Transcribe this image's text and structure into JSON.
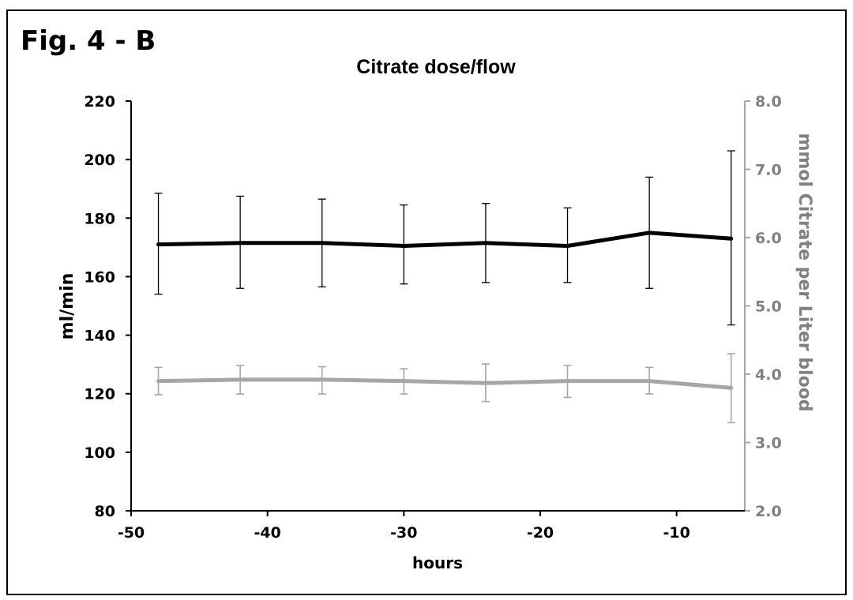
{
  "figure_label": "Fig. 4 - B",
  "chart_data": {
    "type": "line",
    "title": "Citrate dose/flow",
    "xlabel": "hours",
    "ylabel": "ml/min",
    "y2label": "mmol Citrate per Liter blood",
    "xlim": [
      -50,
      -5
    ],
    "ylim": [
      80,
      220
    ],
    "y2lim": [
      2.0,
      8.0
    ],
    "x_ticks": [
      "-50",
      "-40",
      "-30",
      "-20",
      "-10"
    ],
    "y_ticks": [
      "80",
      "100",
      "120",
      "140",
      "160",
      "180",
      "200",
      "220"
    ],
    "y2_ticks": [
      "2.0",
      "3.0",
      "4.0",
      "5.0",
      "6.0",
      "7.0",
      "8.0"
    ],
    "grid": false,
    "legend": "none",
    "x": [
      -48,
      -42,
      -36,
      -30,
      -24,
      -18,
      -12,
      -6
    ],
    "series": [
      {
        "axis": "left",
        "color": "#000000",
        "values": [
          171,
          171.5,
          171.5,
          170.5,
          171.5,
          170.5,
          175,
          173
        ],
        "err_high": [
          188.5,
          187.5,
          186.5,
          184.5,
          185,
          183.5,
          194,
          203
        ],
        "err_low": [
          154,
          156,
          156.5,
          157.5,
          158,
          158,
          156,
          143.5
        ]
      },
      {
        "axis": "right",
        "color": "#a6a6a6",
        "values": [
          3.9,
          3.92,
          3.92,
          3.9,
          3.87,
          3.9,
          3.9,
          3.8
        ],
        "err_high": [
          4.1,
          4.13,
          4.11,
          4.08,
          4.15,
          4.13,
          4.1,
          4.3
        ],
        "err_low": [
          3.7,
          3.71,
          3.71,
          3.71,
          3.6,
          3.66,
          3.71,
          3.29
        ]
      }
    ]
  }
}
